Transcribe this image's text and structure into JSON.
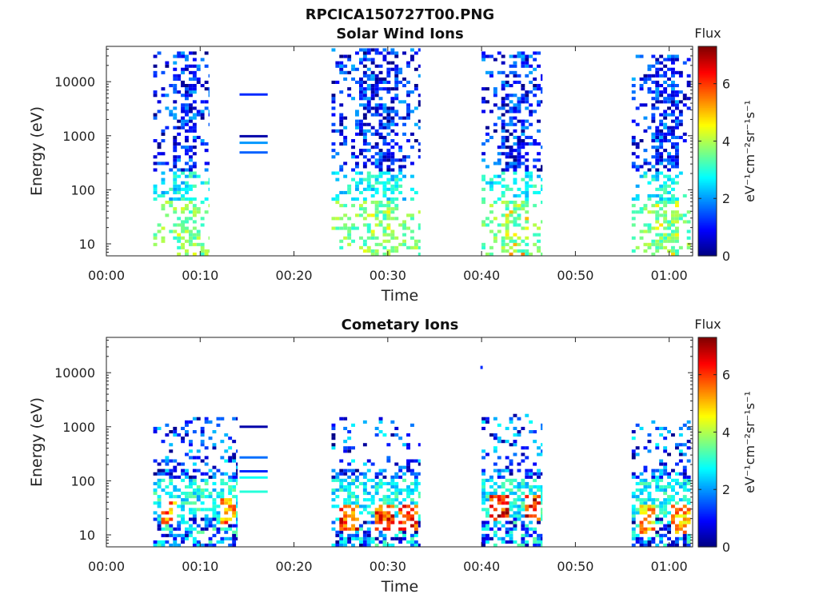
{
  "title": "RPCICA150727T00.PNG",
  "colormap": [
    "#00007f",
    "#0000ff",
    "#007fff",
    "#00ffff",
    "#7fff7f",
    "#ffff00",
    "#ff7f00",
    "#ff0000",
    "#7f0000"
  ],
  "chart_data": [
    {
      "type": "heatmap",
      "title": "Solar Wind Ions",
      "xlabel": "Time",
      "ylabel": "Energy (eV)",
      "yscale": "log",
      "xlim": [
        0,
        62.5
      ],
      "ylim": [
        6,
        45000
      ],
      "xticks": [
        0,
        10,
        20,
        30,
        40,
        50,
        60
      ],
      "xtick_labels": [
        "00:00",
        "00:10",
        "00:20",
        "00:30",
        "00:40",
        "00:50",
        "01:00"
      ],
      "yticks": [
        10,
        100,
        1000,
        10000
      ],
      "ytick_labels": [
        "10",
        "100",
        "1000",
        "10000"
      ],
      "colorbar": {
        "title": "Flux",
        "label": "eV⁻¹cm⁻²sr⁻¹s⁻¹",
        "range": [
          0,
          7.3
        ],
        "ticks": [
          0,
          2,
          4,
          6
        ],
        "tick_labels": [
          "0",
          "2",
          "4",
          "6"
        ]
      },
      "bursts": [
        {
          "t_start": 5.0,
          "t_end": 11.0,
          "e_min": 6,
          "e_max": 35000,
          "peak_flux": 4.5,
          "seed": 11
        },
        {
          "t_start": 24.0,
          "t_end": 33.5,
          "e_min": 6,
          "e_max": 40000,
          "peak_flux": 5.0,
          "seed": 23
        },
        {
          "t_start": 40.0,
          "t_end": 46.5,
          "e_min": 6,
          "e_max": 35000,
          "peak_flux": 5.5,
          "seed": 37
        },
        {
          "t_start": 56.0,
          "t_end": 62.3,
          "e_min": 6,
          "e_max": 30000,
          "peak_flux": 5.0,
          "seed": 53
        }
      ],
      "line_segments": [
        {
          "t_start": 14.2,
          "t_end": 17.2,
          "energy": 5800,
          "flux": 1.2
        },
        {
          "t_start": 14.2,
          "t_end": 17.2,
          "energy": 980,
          "flux": 0.3
        },
        {
          "t_start": 14.2,
          "t_end": 17.2,
          "energy": 740,
          "flux": 2.0
        },
        {
          "t_start": 14.2,
          "t_end": 17.2,
          "energy": 490,
          "flux": 1.6
        }
      ]
    },
    {
      "type": "heatmap",
      "title": "Cometary Ions",
      "xlabel": "Time",
      "ylabel": "Energy (eV)",
      "yscale": "log",
      "xlim": [
        0,
        62.5
      ],
      "ylim": [
        6,
        45000
      ],
      "xticks": [
        0,
        10,
        20,
        30,
        40,
        50,
        60
      ],
      "xtick_labels": [
        "00:00",
        "00:10",
        "00:20",
        "00:30",
        "00:40",
        "00:50",
        "01:00"
      ],
      "yticks": [
        10,
        100,
        1000,
        10000
      ],
      "ytick_labels": [
        "10",
        "100",
        "1000",
        "10000"
      ],
      "colorbar": {
        "title": "Flux",
        "label": "eV⁻¹cm⁻²sr⁻¹s⁻¹",
        "range": [
          0,
          7.3
        ],
        "ticks": [
          0,
          2,
          4,
          6
        ],
        "tick_labels": [
          "0",
          "2",
          "4",
          "6"
        ]
      },
      "bursts": [
        {
          "t_start": 5.0,
          "t_end": 14.0,
          "e_min": 6,
          "e_max": 1500,
          "peak_flux": 6.5,
          "hot_energy": 25,
          "hot_times": [
            6.5,
            12.8
          ],
          "seed": 71
        },
        {
          "t_start": 24.0,
          "t_end": 33.5,
          "e_min": 6,
          "e_max": 1500,
          "peak_flux": 7.0,
          "hot_energy": 20,
          "hot_times": [
            25.8,
            29.5,
            32.0
          ],
          "seed": 83
        },
        {
          "t_start": 40.0,
          "t_end": 46.5,
          "e_min": 6,
          "e_max": 1600,
          "peak_flux": 7.3,
          "hot_energy": 30,
          "hot_times": [
            41.8,
            45.3
          ],
          "seed": 97
        },
        {
          "t_start": 56.0,
          "t_end": 62.3,
          "e_min": 6,
          "e_max": 1300,
          "peak_flux": 6.0,
          "hot_energy": 18,
          "hot_times": [
            57.5,
            61.0
          ],
          "seed": 101
        }
      ],
      "line_segments": [
        {
          "t_start": 14.2,
          "t_end": 17.2,
          "energy": 1000,
          "flux": 0.3
        },
        {
          "t_start": 14.2,
          "t_end": 17.2,
          "energy": 270,
          "flux": 1.7
        },
        {
          "t_start": 14.2,
          "t_end": 17.2,
          "energy": 150,
          "flux": 1.2
        },
        {
          "t_start": 14.2,
          "t_end": 17.2,
          "energy": 115,
          "flux": 2.8
        },
        {
          "t_start": 14.2,
          "t_end": 17.2,
          "energy": 63,
          "flux": 3.0
        }
      ],
      "points": [
        {
          "t": 40.0,
          "energy": 12500,
          "flux": 1.2
        }
      ]
    }
  ]
}
